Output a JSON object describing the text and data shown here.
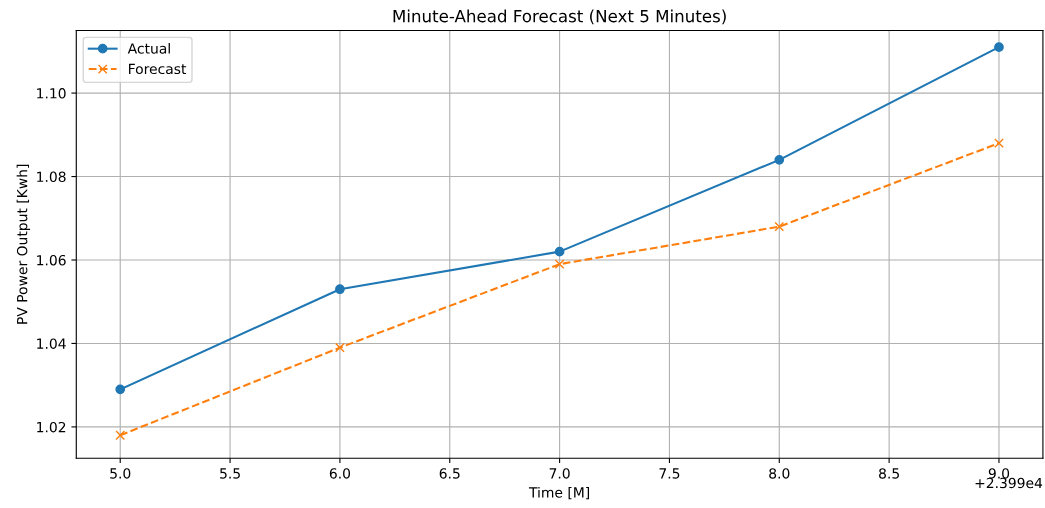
{
  "chart_data": {
    "type": "line",
    "title": "Minute-Ahead Forecast (Next 5 Minutes)",
    "xlabel": "Time [M]",
    "ylabel": "PV Power Output [Kwh]",
    "x": [
      5,
      6,
      7,
      8,
      9
    ],
    "series": [
      {
        "name": "Actual",
        "color": "#1f77b4",
        "marker": "circle",
        "line_style": "solid",
        "values": [
          1.029,
          1.053,
          1.062,
          1.084,
          1.111
        ]
      },
      {
        "name": "Forecast",
        "color": "#ff7f0e",
        "marker": "cross",
        "line_style": "dashed",
        "values": [
          1.018,
          1.039,
          1.059,
          1.068,
          1.088
        ]
      }
    ],
    "xlim": [
      4.8,
      9.2
    ],
    "xticks": [
      {
        "value": 5,
        "label": "5.0"
      },
      5.5,
      {
        "value": 6,
        "label": "6.0"
      },
      6.5,
      {
        "value": 7,
        "label": "7.0"
      },
      7.5,
      {
        "value": 8,
        "label": "8.0"
      },
      8.5,
      {
        "value": 9,
        "label": "9.0"
      }
    ],
    "ylim": [
      1.0125,
      1.115
    ],
    "yticks": [
      {
        "value": 1.02,
        "label": "1.02"
      },
      {
        "value": 1.04,
        "label": "1.04"
      },
      {
        "value": 1.06,
        "label": "1.06"
      },
      {
        "value": 1.08,
        "label": "1.08"
      },
      {
        "value": 1.1,
        "label": "1.10"
      }
    ],
    "annotations": [
      "+2.399e4"
    ],
    "grid": true,
    "legend": "top left"
  }
}
